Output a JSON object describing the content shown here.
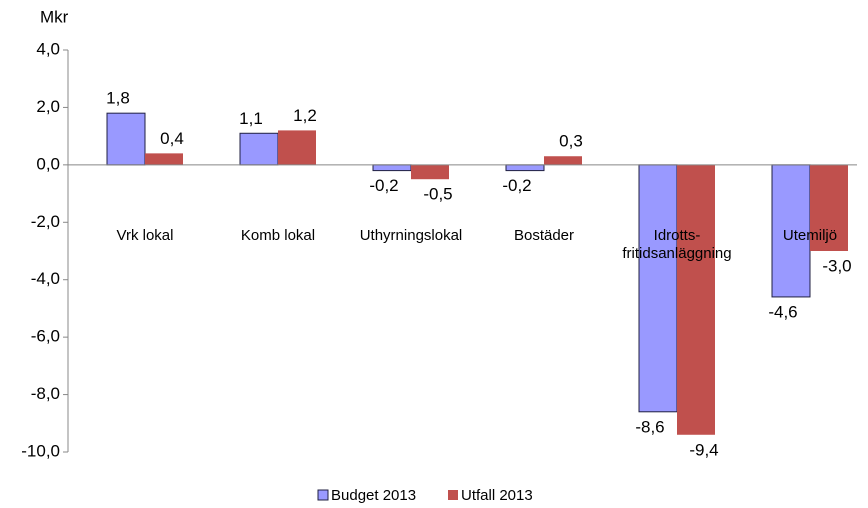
{
  "chart_data": {
    "type": "bar",
    "y_label": "Mkr",
    "categories": [
      "Vrk lokal",
      "Komb lokal",
      "Uthyrningslokal",
      "Bostäder",
      "Idrotts-\nfritidsanläggning",
      "Utemiljö"
    ],
    "series": [
      {
        "name": "Budget 2013",
        "color": "#9999ff",
        "values": [
          1.8,
          1.1,
          -0.2,
          -0.2,
          -8.6,
          -4.6
        ],
        "value_labels": [
          "1,8",
          "1,1",
          "-0,2",
          "-0,2",
          "-8,6",
          "-4,6"
        ]
      },
      {
        "name": "Utfall 2013",
        "color": "#c0504d",
        "values": [
          0.4,
          1.2,
          -0.5,
          0.3,
          -9.4,
          -3.0
        ],
        "value_labels": [
          "0,4",
          "1,2",
          "-0,5",
          "0,3",
          "-9,4",
          "-3,0"
        ]
      }
    ],
    "ylim": [
      -10,
      4
    ],
    "yticks": [
      {
        "value": -10,
        "label": "-10,0"
      },
      {
        "value": -8,
        "label": "-8,0"
      },
      {
        "value": -6,
        "label": "-6,0"
      },
      {
        "value": -4,
        "label": "-4,0"
      },
      {
        "value": -2,
        "label": "-2,0"
      },
      {
        "value": 0,
        "label": "0,0"
      },
      {
        "value": 2,
        "label": "2,0"
      },
      {
        "value": 4,
        "label": "4,0"
      }
    ],
    "legend": "bottom"
  }
}
